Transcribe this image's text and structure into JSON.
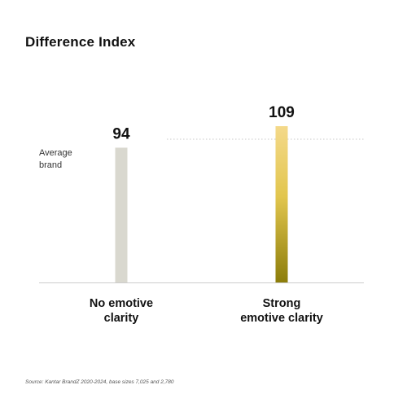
{
  "chart_data": {
    "type": "bar",
    "title": "Difference Index",
    "categories": [
      "No emotive clarity",
      "Strong emotive clarity"
    ],
    "category_lines": [
      [
        "No emotive",
        "clarity"
      ],
      [
        "Strong",
        "emotive clarity"
      ]
    ],
    "values": [
      94,
      109
    ],
    "value_labels": [
      "94",
      "109"
    ],
    "reference_line": {
      "value": 100,
      "label_lines": [
        "Average",
        "brand"
      ]
    },
    "ylim": [
      0,
      109
    ],
    "grid": false,
    "legend": "none",
    "colors": {
      "bar_neutral": "#d9d8cf",
      "bar_gold_top": "#f4d98a",
      "bar_gold_mid": "#e2c64e",
      "bar_gold_bottom": "#8c7d0a",
      "axis": "#cccccc",
      "reference": "#c8c8c8"
    },
    "source": "Source: Kantar BrandZ 2020-2024, base sizes 7,025 and 2,780"
  }
}
